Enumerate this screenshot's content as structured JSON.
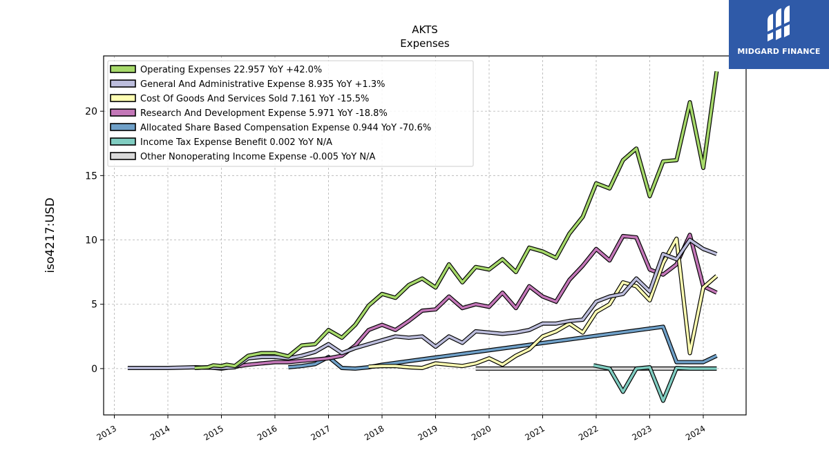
{
  "brand": {
    "name": "MIDGARD FINANCE",
    "bg_color": "#2f5aa8"
  },
  "chart_data": {
    "type": "line",
    "title": "AKTS",
    "subtitle": "Expenses",
    "xlabel": "",
    "ylabel": "iso4217:USD",
    "xlim": [
      2012.8,
      2024.8
    ],
    "ylim": [
      -3.6,
      24.3
    ],
    "xticks": [
      "2013",
      "2014",
      "2015",
      "2016",
      "2017",
      "2018",
      "2019",
      "2020",
      "2021",
      "2022",
      "2023",
      "2024"
    ],
    "yticks": [
      0,
      5,
      10,
      15,
      20
    ],
    "grid": true,
    "legend_position": "top-left",
    "series": [
      {
        "name": "Operating Expenses  22.957 YoY +42.0%",
        "color": "#a6d96a",
        "points": [
          [
            2014.5,
            0.05
          ],
          [
            2014.75,
            0.1
          ],
          [
            2014.85,
            0.25
          ],
          [
            2015.0,
            0.2
          ],
          [
            2015.1,
            0.3
          ],
          [
            2015.25,
            0.2
          ],
          [
            2015.5,
            1.0
          ],
          [
            2015.75,
            1.2
          ],
          [
            2016.0,
            1.2
          ],
          [
            2016.25,
            0.95
          ],
          [
            2016.5,
            1.8
          ],
          [
            2016.75,
            1.9
          ],
          [
            2017.0,
            3.0
          ],
          [
            2017.25,
            2.4
          ],
          [
            2017.5,
            3.4
          ],
          [
            2017.75,
            4.9
          ],
          [
            2018.0,
            5.8
          ],
          [
            2018.25,
            5.5
          ],
          [
            2018.5,
            6.5
          ],
          [
            2018.75,
            7.0
          ],
          [
            2019.0,
            6.3
          ],
          [
            2019.25,
            8.1
          ],
          [
            2019.5,
            6.7
          ],
          [
            2019.75,
            7.9
          ],
          [
            2020.0,
            7.7
          ],
          [
            2020.25,
            8.5
          ],
          [
            2020.5,
            7.5
          ],
          [
            2020.75,
            9.4
          ],
          [
            2021.0,
            9.1
          ],
          [
            2021.25,
            8.6
          ],
          [
            2021.5,
            10.5
          ],
          [
            2021.75,
            11.8
          ],
          [
            2022.0,
            14.4
          ],
          [
            2022.25,
            14.0
          ],
          [
            2022.5,
            16.2
          ],
          [
            2022.75,
            17.1
          ],
          [
            2023.0,
            13.4
          ],
          [
            2023.25,
            16.1
          ],
          [
            2023.5,
            16.2
          ],
          [
            2023.75,
            20.7
          ],
          [
            2024.0,
            15.6
          ],
          [
            2024.25,
            23.1
          ]
        ]
      },
      {
        "name": "General And Administrative Expense  8.935 YoY +1.3%",
        "color": "#bcbddc",
        "points": [
          [
            2013.25,
            0.05
          ],
          [
            2013.5,
            0.05
          ],
          [
            2014.0,
            0.05
          ],
          [
            2014.5,
            0.1
          ],
          [
            2015.0,
            0.05
          ],
          [
            2015.25,
            0.1
          ],
          [
            2015.5,
            0.8
          ],
          [
            2015.75,
            0.9
          ],
          [
            2016.0,
            0.9
          ],
          [
            2016.25,
            0.8
          ],
          [
            2016.5,
            1.0
          ],
          [
            2016.75,
            1.3
          ],
          [
            2017.0,
            1.9
          ],
          [
            2017.25,
            1.2
          ],
          [
            2017.5,
            1.6
          ],
          [
            2017.75,
            1.9
          ],
          [
            2018.0,
            2.2
          ],
          [
            2018.25,
            2.5
          ],
          [
            2018.5,
            2.4
          ],
          [
            2018.75,
            2.5
          ],
          [
            2019.0,
            1.7
          ],
          [
            2019.25,
            2.5
          ],
          [
            2019.5,
            2.0
          ],
          [
            2019.75,
            2.9
          ],
          [
            2020.0,
            2.8
          ],
          [
            2020.25,
            2.7
          ],
          [
            2020.5,
            2.8
          ],
          [
            2020.75,
            3.0
          ],
          [
            2021.0,
            3.5
          ],
          [
            2021.25,
            3.5
          ],
          [
            2021.5,
            3.7
          ],
          [
            2021.75,
            3.8
          ],
          [
            2022.0,
            5.2
          ],
          [
            2022.25,
            5.6
          ],
          [
            2022.5,
            5.8
          ],
          [
            2022.75,
            7.0
          ],
          [
            2023.0,
            6.0
          ],
          [
            2023.25,
            8.9
          ],
          [
            2023.5,
            8.5
          ],
          [
            2023.75,
            10.0
          ],
          [
            2024.0,
            9.3
          ],
          [
            2024.25,
            8.9
          ]
        ]
      },
      {
        "name": "Cost Of Goods And Services Sold  7.161 YoY -15.5%",
        "color": "#ffffb3",
        "points": [
          [
            2017.75,
            0.15
          ],
          [
            2018.0,
            0.2
          ],
          [
            2018.25,
            0.2
          ],
          [
            2018.5,
            0.1
          ],
          [
            2018.75,
            0.05
          ],
          [
            2019.0,
            0.4
          ],
          [
            2019.25,
            0.3
          ],
          [
            2019.5,
            0.2
          ],
          [
            2019.75,
            0.4
          ],
          [
            2020.0,
            0.8
          ],
          [
            2020.25,
            0.3
          ],
          [
            2020.5,
            1.0
          ],
          [
            2020.75,
            1.5
          ],
          [
            2021.0,
            2.5
          ],
          [
            2021.25,
            2.9
          ],
          [
            2021.5,
            3.5
          ],
          [
            2021.75,
            2.8
          ],
          [
            2022.0,
            4.4
          ],
          [
            2022.25,
            5.0
          ],
          [
            2022.5,
            6.7
          ],
          [
            2022.75,
            6.4
          ],
          [
            2023.0,
            5.3
          ],
          [
            2023.25,
            8.2
          ],
          [
            2023.5,
            10.1
          ],
          [
            2023.75,
            1.2
          ],
          [
            2024.0,
            6.3
          ],
          [
            2024.25,
            7.2
          ]
        ]
      },
      {
        "name": "Research And Development Expense  5.971 YoY -18.8%",
        "color": "#c377b8",
        "points": [
          [
            2014.5,
            0.05
          ],
          [
            2014.75,
            0.1
          ],
          [
            2015.0,
            0.0
          ],
          [
            2015.25,
            0.15
          ],
          [
            2015.5,
            0.3
          ],
          [
            2015.75,
            0.4
          ],
          [
            2016.0,
            0.5
          ],
          [
            2016.25,
            0.5
          ],
          [
            2016.5,
            0.6
          ],
          [
            2016.75,
            0.7
          ],
          [
            2017.0,
            0.8
          ],
          [
            2017.25,
            1.0
          ],
          [
            2017.5,
            1.8
          ],
          [
            2017.75,
            3.0
          ],
          [
            2018.0,
            3.4
          ],
          [
            2018.25,
            3.0
          ],
          [
            2018.5,
            3.7
          ],
          [
            2018.75,
            4.5
          ],
          [
            2019.0,
            4.6
          ],
          [
            2019.25,
            5.6
          ],
          [
            2019.5,
            4.7
          ],
          [
            2019.75,
            5.0
          ],
          [
            2020.0,
            4.8
          ],
          [
            2020.25,
            5.9
          ],
          [
            2020.5,
            4.7
          ],
          [
            2020.75,
            6.4
          ],
          [
            2021.0,
            5.6
          ],
          [
            2021.25,
            5.2
          ],
          [
            2021.5,
            6.9
          ],
          [
            2021.75,
            8.0
          ],
          [
            2022.0,
            9.3
          ],
          [
            2022.25,
            8.4
          ],
          [
            2022.5,
            10.3
          ],
          [
            2022.75,
            10.2
          ],
          [
            2023.0,
            7.7
          ],
          [
            2023.25,
            7.3
          ],
          [
            2023.5,
            8.1
          ],
          [
            2023.75,
            10.4
          ],
          [
            2024.0,
            6.4
          ],
          [
            2024.25,
            5.9
          ]
        ]
      },
      {
        "name": "Allocated Share Based Compensation Expense  0.944 YoY -70.6%",
        "color": "#6fa0c8",
        "points": [
          [
            2016.25,
            0.1
          ],
          [
            2016.5,
            0.2
          ],
          [
            2016.75,
            0.35
          ],
          [
            2017.0,
            0.9
          ],
          [
            2017.25,
            0.05
          ],
          [
            2017.5,
            0.0
          ],
          [
            2017.75,
            0.1
          ],
          [
            2018.0,
            0.3
          ],
          [
            2023.25,
            3.25
          ],
          [
            2023.5,
            0.5
          ],
          [
            2023.75,
            0.5
          ],
          [
            2024.0,
            0.5
          ],
          [
            2024.25,
            1.0
          ]
        ]
      },
      {
        "name": "Income Tax Expense Benefit  0.002 YoY N/A",
        "color": "#80cdc1",
        "points": [
          [
            2021.95,
            0.25
          ],
          [
            2022.25,
            0.0
          ],
          [
            2022.5,
            -1.8
          ],
          [
            2022.75,
            0.0
          ],
          [
            2023.0,
            0.1
          ],
          [
            2023.25,
            -2.5
          ],
          [
            2023.5,
            0.05
          ],
          [
            2023.75,
            0.0
          ],
          [
            2024.0,
            0.0
          ],
          [
            2024.25,
            0.0
          ]
        ]
      },
      {
        "name": "Other Nonoperating Income Expense  -0.005 YoY N/A",
        "color": "#d9d9d9",
        "points": [
          [
            2019.75,
            0.0
          ],
          [
            2020.25,
            0.0
          ],
          [
            2021.0,
            0.0
          ],
          [
            2022.0,
            0.0
          ],
          [
            2023.0,
            0.0
          ],
          [
            2024.25,
            0.0
          ]
        ]
      }
    ]
  }
}
